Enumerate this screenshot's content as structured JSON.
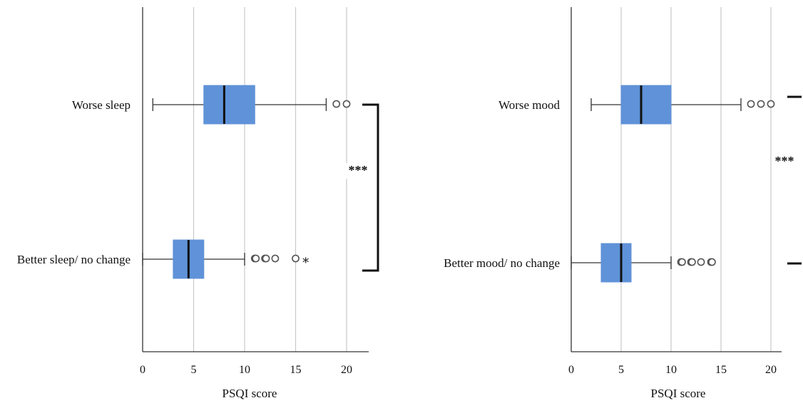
{
  "chart_data": [
    {
      "type": "boxplot",
      "orientation": "horizontal",
      "xlabel": "PSQI score",
      "xlim": [
        0,
        22
      ],
      "xticks": [
        0,
        5,
        10,
        15,
        20
      ],
      "grid": "vertical",
      "categories": [
        "Worse sleep",
        "Better sleep/ no change"
      ],
      "boxes": [
        {
          "label": "Worse sleep",
          "whisker_low": 1,
          "q1": 6,
          "median": 8,
          "q3": 11,
          "whisker_high": 18,
          "outliers": [
            19,
            20
          ],
          "extremes": []
        },
        {
          "label": "Better sleep/ no change",
          "whisker_low": 0,
          "q1": 3,
          "median": 4.5,
          "q3": 6,
          "whisker_high": 10,
          "outliers": [
            11,
            11.1,
            12,
            12.1,
            13,
            15
          ],
          "extremes": [
            16
          ]
        }
      ],
      "significance": {
        "label": "***",
        "between": [
          "Worse sleep",
          "Better sleep/ no change"
        ]
      }
    },
    {
      "type": "boxplot",
      "orientation": "horizontal",
      "xlabel": "PSQI score",
      "xlim": [
        0,
        22
      ],
      "xticks": [
        0,
        5,
        10,
        15,
        20
      ],
      "grid": "vertical",
      "categories": [
        "Worse mood",
        "Better mood/ no change"
      ],
      "boxes": [
        {
          "label": "Worse mood",
          "whisker_low": 2,
          "q1": 5,
          "median": 7,
          "q3": 10,
          "whisker_high": 17,
          "outliers": [
            18,
            19,
            20
          ],
          "extremes": []
        },
        {
          "label": "Better mood/ no change",
          "whisker_low": 0,
          "q1": 3,
          "median": 5,
          "q3": 6,
          "whisker_high": 10,
          "outliers": [
            11,
            11.1,
            12,
            12.1,
            13,
            14,
            14.1
          ],
          "extremes": []
        }
      ],
      "significance": {
        "label": "***",
        "between": [
          "Worse mood",
          "Better mood/ no change"
        ]
      }
    }
  ],
  "colors": {
    "box": "#5f92d8",
    "grid": "#c8c8c8",
    "axis": "#333333",
    "median": "#111111"
  }
}
